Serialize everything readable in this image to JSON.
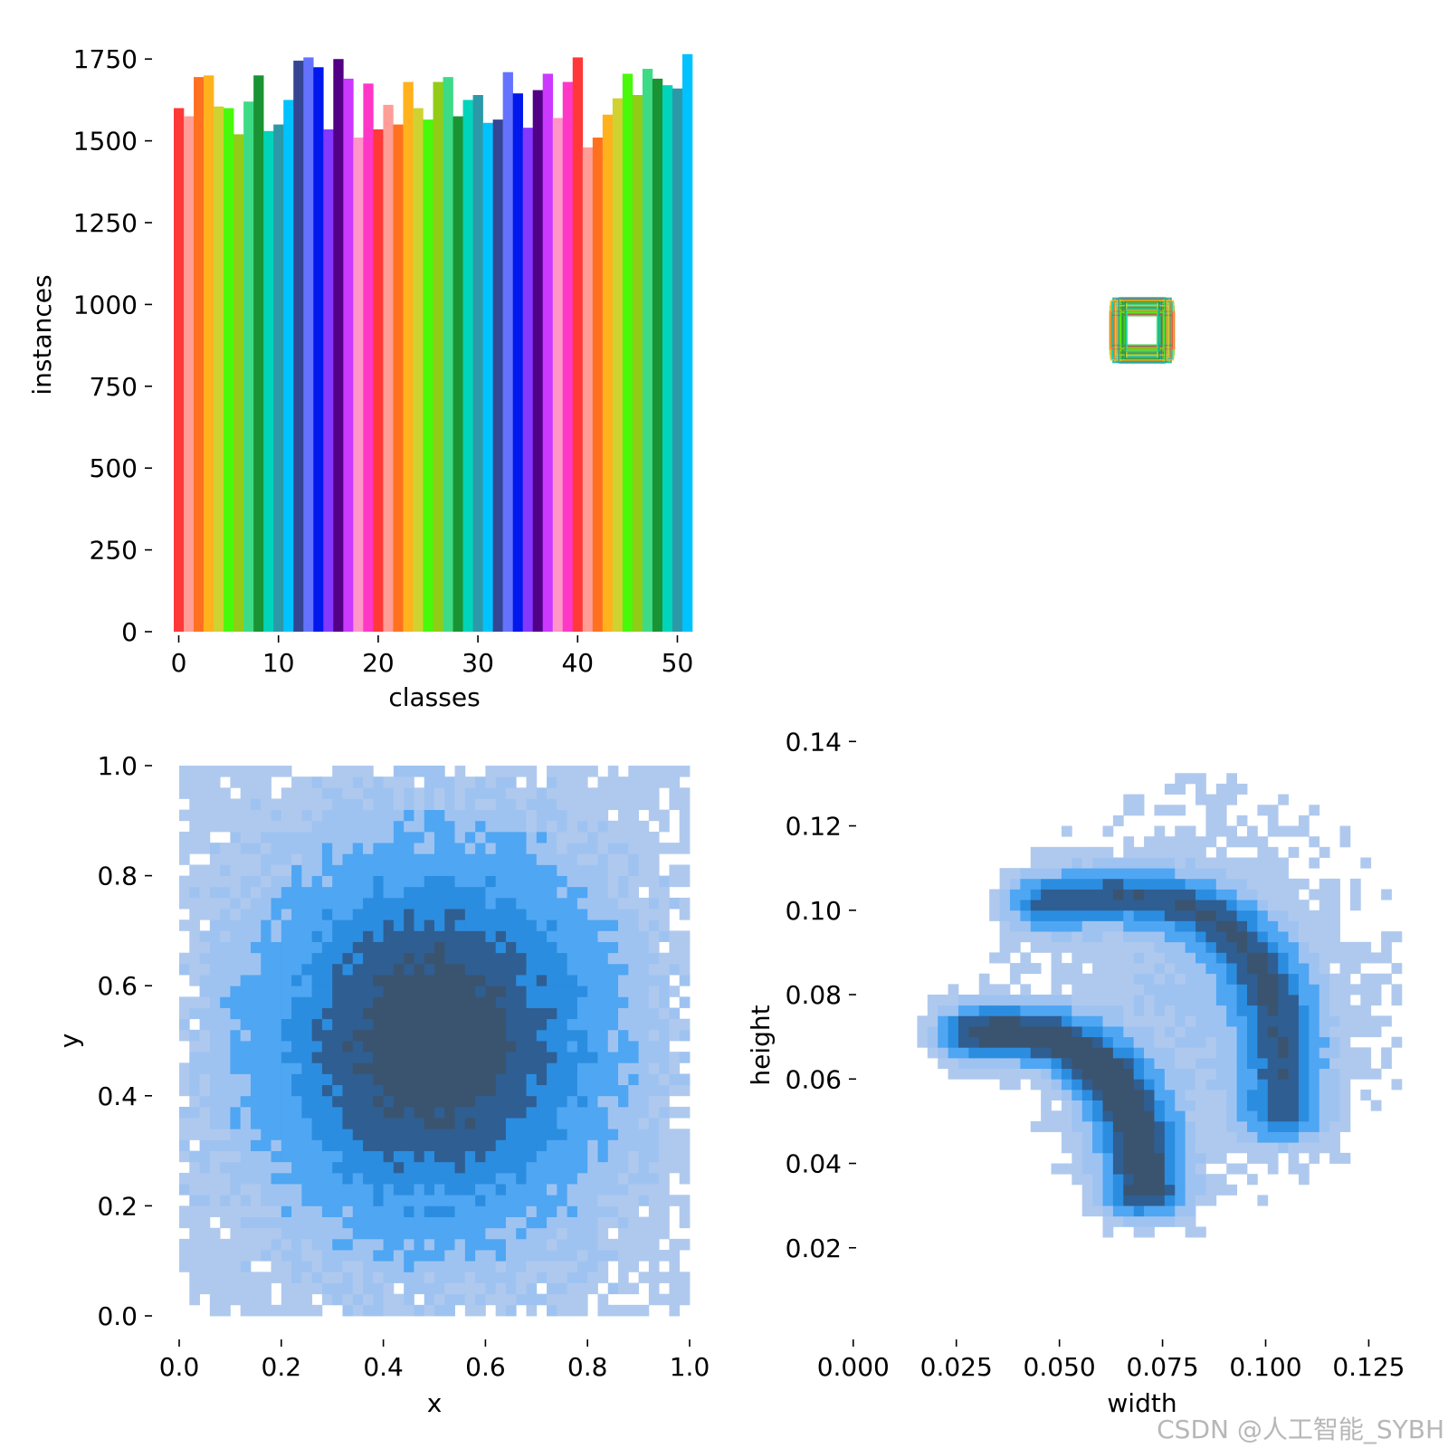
{
  "watermark": "CSDN @人工智能_SYBH",
  "chart_data": [
    {
      "id": "classes",
      "type": "bar",
      "xlabel": "classes",
      "ylabel": "instances",
      "xlim": [
        -0.5,
        51.5
      ],
      "ylim": [
        0,
        1770
      ],
      "xticks": [
        0,
        10,
        20,
        30,
        40,
        50
      ],
      "xtick_labels": [
        "0",
        "10",
        "20",
        "30",
        "40",
        "50"
      ],
      "yticks": [
        0,
        250,
        500,
        750,
        1000,
        1250,
        1500,
        1750
      ],
      "ytick_labels": [
        "0",
        "250",
        "500",
        "750",
        "1000",
        "1250",
        "1500",
        "1750"
      ],
      "categories": [
        0,
        1,
        2,
        3,
        4,
        5,
        6,
        7,
        8,
        9,
        10,
        11,
        12,
        13,
        14,
        15,
        16,
        17,
        18,
        19,
        20,
        21,
        22,
        23,
        24,
        25,
        26,
        27,
        28,
        29,
        30,
        31,
        32,
        33,
        34,
        35,
        36,
        37,
        38,
        39,
        40,
        41,
        42,
        43,
        44,
        45,
        46,
        47,
        48,
        49,
        50,
        51
      ],
      "values": [
        1600,
        1575,
        1695,
        1700,
        1605,
        1600,
        1520,
        1620,
        1700,
        1530,
        1550,
        1625,
        1745,
        1755,
        1725,
        1535,
        1750,
        1690,
        1510,
        1675,
        1535,
        1610,
        1550,
        1680,
        1600,
        1565,
        1680,
        1695,
        1575,
        1625,
        1640,
        1555,
        1565,
        1710,
        1645,
        1540,
        1655,
        1705,
        1570,
        1680,
        1755,
        1480,
        1510,
        1580,
        1630,
        1705,
        1640,
        1720,
        1690,
        1670,
        1660,
        1765
      ],
      "colors": [
        "#FF3838",
        "#FF9D97",
        "#FF701F",
        "#FFB21D",
        "#CFD231",
        "#48F90A",
        "#92CC17",
        "#3DDB86",
        "#1A9334",
        "#00D4BB",
        "#2C99A8",
        "#00C2FF",
        "#344593",
        "#6473FF",
        "#0018EC",
        "#8438FF",
        "#520085",
        "#CB38FF",
        "#FF95C8",
        "#FF37C7",
        "#FF3838",
        "#FF9D97",
        "#FF701F",
        "#FFB21D",
        "#CFD231",
        "#48F90A",
        "#92CC17",
        "#3DDB86",
        "#1A9334",
        "#00D4BB",
        "#2C99A8",
        "#00C2FF",
        "#344593",
        "#6473FF",
        "#0018EC",
        "#8438FF",
        "#520085",
        "#CB38FF",
        "#FF95C8",
        "#FF37C7",
        "#FF3838",
        "#FF9D97",
        "#FF701F",
        "#FFB21D",
        "#CFD231",
        "#48F90A",
        "#92CC17",
        "#3DDB86",
        "#1A9334",
        "#00D4BB",
        "#2C99A8",
        "#00C2FF"
      ]
    },
    {
      "id": "boxes",
      "type": "other",
      "description_color_set": [
        "#FF3838",
        "#FF701F",
        "#FFB21D",
        "#CFD231",
        "#48F90A",
        "#3DDB86",
        "#1A9334",
        "#00D4BB",
        "#2C99A8"
      ],
      "box_count_shown": 9,
      "box_size_range": [
        0.03,
        0.14
      ]
    },
    {
      "id": "xy",
      "type": "heatmap",
      "xlabel": "x",
      "ylabel": "y",
      "xlim": [
        0,
        1
      ],
      "ylim": [
        0,
        1
      ],
      "xticks": [
        0.0,
        0.2,
        0.4,
        0.6,
        0.8,
        1.0
      ],
      "xtick_labels": [
        "0.0",
        "0.2",
        "0.4",
        "0.6",
        "0.8",
        "1.0"
      ],
      "yticks": [
        0.0,
        0.2,
        0.4,
        0.6,
        0.8,
        1.0
      ],
      "ytick_labels": [
        "0.0",
        "0.2",
        "0.4",
        "0.6",
        "0.8",
        "1.0"
      ],
      "bins": 50,
      "data_range_x": [
        0.0,
        1.0
      ],
      "data_range_y": [
        0.01,
        1.0
      ],
      "center": [
        0.5,
        0.5
      ],
      "spread": 0.22,
      "palette": [
        "#AFC9EE",
        "#9FC3F1",
        "#4FA6F3",
        "#2B8DE0",
        "#2F5E92",
        "#3A5470"
      ]
    },
    {
      "id": "wh",
      "type": "heatmap",
      "xlabel": "width",
      "ylabel": "height",
      "xlim": [
        -0.005,
        0.135
      ],
      "ylim": [
        0.0,
        0.145
      ],
      "xticks": [
        0.0,
        0.025,
        0.05,
        0.075,
        0.1,
        0.125
      ],
      "xtick_labels": [
        "0.000",
        "0.025",
        "0.050",
        "0.075",
        "0.100",
        "0.125"
      ],
      "yticks": [
        0.02,
        0.04,
        0.06,
        0.08,
        0.1,
        0.12,
        0.14
      ],
      "ytick_labels": [
        "0.02",
        "0.04",
        "0.06",
        "0.08",
        "0.10",
        "0.12",
        "0.14"
      ],
      "bin_w": 0.0025,
      "bin_h": 0.0025,
      "data_range_w": [
        0.003,
        0.133
      ],
      "data_range_h": [
        0.005,
        0.135
      ],
      "arcs": [
        {
          "from": [
            0.031,
            0.071
          ],
          "ctrl": [
            0.068,
            0.074
          ],
          "to": [
            0.071,
            0.034
          ],
          "weight": 1.0
        },
        {
          "from": [
            0.048,
            0.102
          ],
          "ctrl": [
            0.108,
            0.112
          ],
          "to": [
            0.104,
            0.052
          ],
          "weight": 0.75
        }
      ],
      "palette": [
        "#AFC9EE",
        "#9FC3F1",
        "#4FA6F3",
        "#2B8DE0",
        "#2F5E92",
        "#3A5470"
      ]
    }
  ]
}
